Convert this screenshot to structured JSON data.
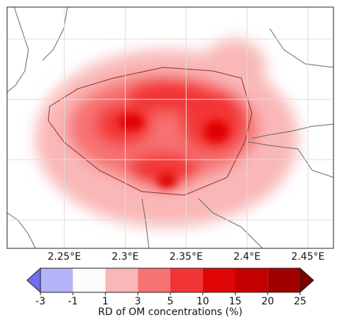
{
  "map": {
    "xlim": [
      2.203,
      2.471
    ],
    "lon_ticks": [
      {
        "value": 2.25,
        "label": "2.25°E"
      },
      {
        "value": 2.3,
        "label": "2.3°E"
      },
      {
        "value": 2.35,
        "label": "2.35°E"
      },
      {
        "value": 2.4,
        "label": "2.4°E"
      },
      {
        "value": 2.45,
        "label": "2.45°E"
      }
    ],
    "colorbar": {
      "label": "RD of OM concentrations (%)",
      "bounds": [
        -3,
        -1,
        1,
        3,
        5,
        10,
        15,
        20,
        25
      ],
      "colors": [
        "#b3b3f7",
        "#fdfcfa",
        "#f9b7b7",
        "#f77272",
        "#f33434",
        "#e00606",
        "#c50000",
        "#a00000"
      ],
      "under_color": "#6f6ff0",
      "over_color": "#7d0000"
    }
  }
}
